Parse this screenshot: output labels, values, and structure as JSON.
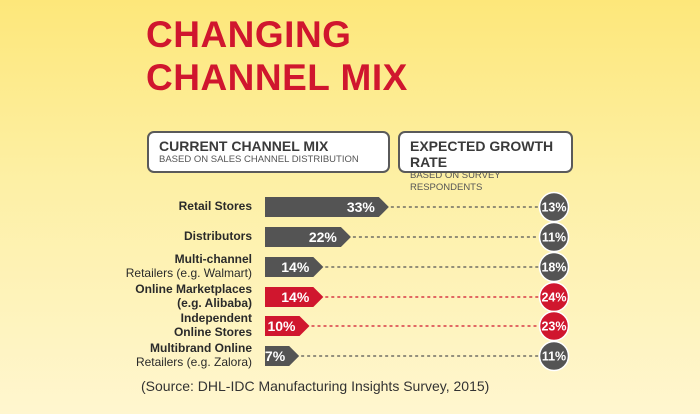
{
  "title": {
    "line1": "CHANGING",
    "line2": "CHANNEL MIX"
  },
  "headers": {
    "current": {
      "title": "CURRENT CHANNEL MIX",
      "subtitle": "BASED ON SALES CHANNEL DISTRIBUTION"
    },
    "growth": {
      "title": "EXPECTED GROWTH RATE",
      "subtitle": "BASED ON SURVEY RESPONDENTS"
    }
  },
  "chart_data": {
    "type": "bar",
    "categories": [
      {
        "line1": "Retail Stores",
        "line2": ""
      },
      {
        "line1": "Distributors",
        "line2": ""
      },
      {
        "line1": "Multi-channel",
        "line2": "Retailers (e.g. Walmart)"
      },
      {
        "line1": "Online Marketplaces",
        "line2": "(e.g. Alibaba)"
      },
      {
        "line1": "Independent",
        "line2": "Online Stores"
      },
      {
        "line1": "Multibrand Online",
        "line2": "Retailers (e.g. Zalora)"
      }
    ],
    "current_mix": [
      33,
      22,
      14,
      14,
      10,
      7
    ],
    "current_mix_labels": [
      "33%",
      "22%",
      "14%",
      "14%",
      "10%",
      "7%"
    ],
    "growth_rate": [
      13,
      11,
      18,
      24,
      23,
      11
    ],
    "growth_rate_labels": [
      "13%",
      "11%",
      "18%",
      "24%",
      "23%",
      "11%"
    ],
    "highlighted": [
      false,
      false,
      false,
      true,
      true,
      false
    ],
    "colors": {
      "default": "#545454",
      "highlight": "#d0162e",
      "bar_text": "#ffffff"
    }
  },
  "source": "(Source: DHL-IDC Manufacturing Insights Survey, 2015)"
}
